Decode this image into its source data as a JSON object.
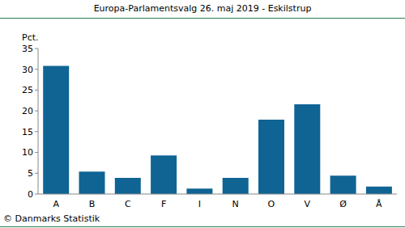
{
  "chart_data": {
    "type": "bar",
    "title": "Europa-Parlamentsvalg 26. maj 2019 - Eskilstrup",
    "y_label": "Pct.",
    "annotations": [
      "© Danmarks Statistik"
    ],
    "categories": [
      "A",
      "B",
      "C",
      "F",
      "I",
      "N",
      "O",
      "V",
      "Ø",
      "Å"
    ],
    "values": [
      30.8,
      5.4,
      3.9,
      9.3,
      1.3,
      3.9,
      17.9,
      21.6,
      4.4,
      1.8
    ],
    "color": "#0f6494",
    "ylim": [
      0,
      35
    ],
    "yticks": [
      0,
      5,
      10,
      15,
      20,
      25,
      30,
      35
    ],
    "grid": false
  }
}
